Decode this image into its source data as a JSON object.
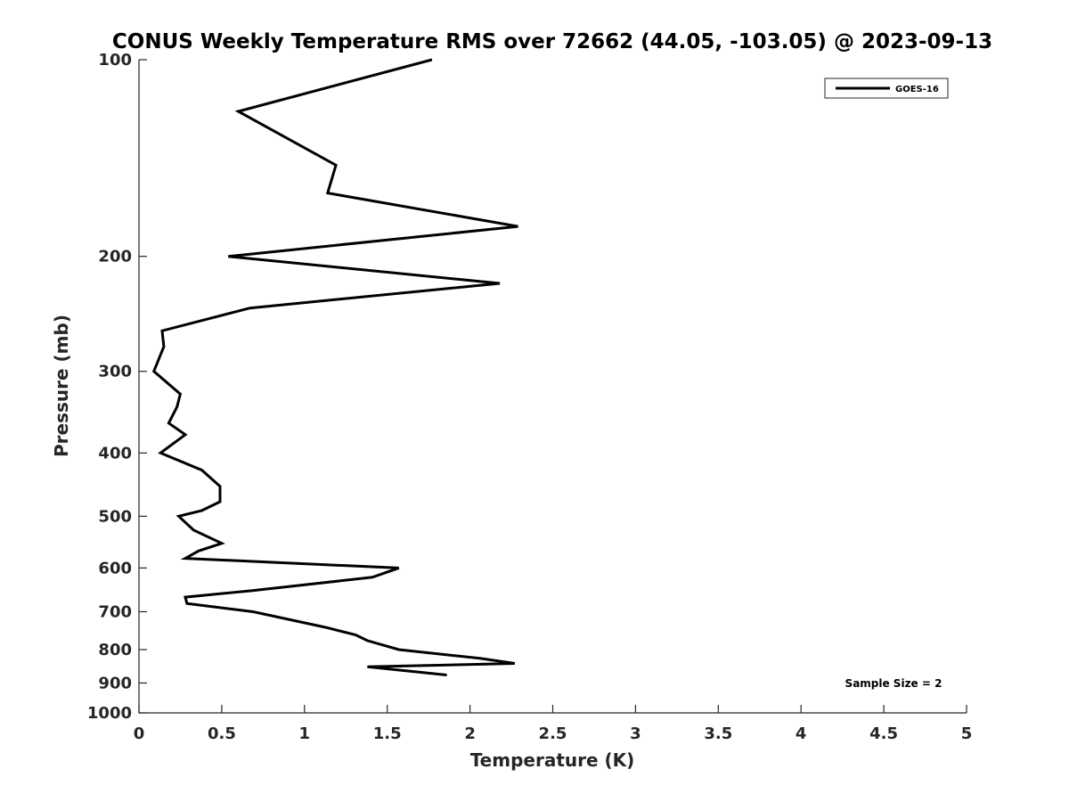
{
  "chart_data": {
    "type": "line",
    "title": "CONUS Weekly Temperature RMS over 72662 (44.05, -103.05) @ 2023-09-13",
    "xlabel": "Temperature (K)",
    "ylabel": "Pressure (mb)",
    "xlim": [
      0,
      5
    ],
    "ylim": [
      100,
      1000
    ],
    "y_scale": "log",
    "y_reversed": true,
    "grid": false,
    "x_ticks": [
      0,
      0.5,
      1,
      1.5,
      2,
      2.5,
      3,
      3.5,
      4,
      4.5,
      5
    ],
    "x_tick_labels": [
      "0",
      "0.5",
      "1",
      "1.5",
      "2",
      "2.5",
      "3",
      "3.5",
      "4",
      "4.5",
      "5"
    ],
    "y_ticks": [
      100,
      200,
      300,
      400,
      500,
      600,
      700,
      800,
      900,
      1000
    ],
    "y_tick_labels": [
      "100",
      "200",
      "300",
      "400",
      "500",
      "600",
      "700",
      "800",
      "900",
      "1000"
    ],
    "legend": {
      "position": "top-right",
      "entries": [
        "GOES-16"
      ]
    },
    "annotation": "Sample Size = 2",
    "series": [
      {
        "name": "GOES-16",
        "color": "#000000",
        "points": [
          [
            1.77,
            100
          ],
          [
            0.6,
            120
          ],
          [
            1.19,
            145
          ],
          [
            1.14,
            160
          ],
          [
            2.29,
            180
          ],
          [
            0.54,
            200
          ],
          [
            2.18,
            220
          ],
          [
            0.67,
            240
          ],
          [
            0.14,
            260
          ],
          [
            0.15,
            275
          ],
          [
            0.09,
            300
          ],
          [
            0.25,
            325
          ],
          [
            0.23,
            340
          ],
          [
            0.18,
            360
          ],
          [
            0.28,
            375
          ],
          [
            0.13,
            400
          ],
          [
            0.38,
            425
          ],
          [
            0.49,
            450
          ],
          [
            0.49,
            475
          ],
          [
            0.38,
            490
          ],
          [
            0.24,
            500
          ],
          [
            0.33,
            525
          ],
          [
            0.5,
            550
          ],
          [
            0.36,
            565
          ],
          [
            0.28,
            580
          ],
          [
            1.57,
            600
          ],
          [
            1.41,
            620
          ],
          [
            0.68,
            650
          ],
          [
            0.28,
            665
          ],
          [
            0.29,
            680
          ],
          [
            0.69,
            700
          ],
          [
            1.13,
            740
          ],
          [
            1.31,
            760
          ],
          [
            1.38,
            775
          ],
          [
            1.57,
            800
          ],
          [
            2.06,
            825
          ],
          [
            2.27,
            840
          ],
          [
            1.38,
            850
          ],
          [
            1.86,
            875
          ]
        ]
      }
    ]
  }
}
